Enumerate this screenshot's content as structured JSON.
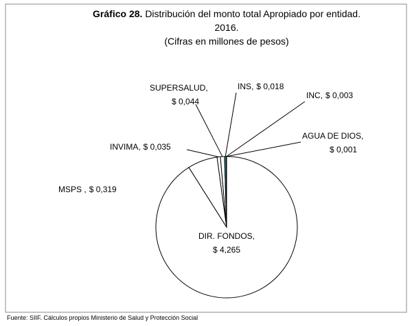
{
  "chart_data": {
    "type": "pie",
    "title_label": "Gráfico 28.",
    "title": "Distribución del monto total Apropiado por entidad. 2016.",
    "subtitle": "(Cifras en millones de pesos)",
    "source": "Fuente: SIIF. Cálculos propios Ministerio de Salud y Protección Social",
    "categories": [
      "DIR. FONDOS,",
      "MSPS  ,",
      "INVIMA,",
      "SUPERSALUD,",
      "INS,",
      "INC,",
      "AGUA DE DIOS,"
    ],
    "values": [
      4.265,
      0.319,
      0.035,
      0.044,
      0.018,
      0.003,
      0.001
    ],
    "value_labels": [
      "$ 4,265",
      "$ 0,319",
      "$ 0,035",
      "$ 0,044",
      "$ 0,018",
      "$ 0,003",
      "$ 0,001"
    ],
    "colors": [
      "#ffffff",
      "#ffffff",
      "#ffffff",
      "#ffffff",
      "#31859c",
      "#ffffff",
      "#ffffff"
    ]
  }
}
